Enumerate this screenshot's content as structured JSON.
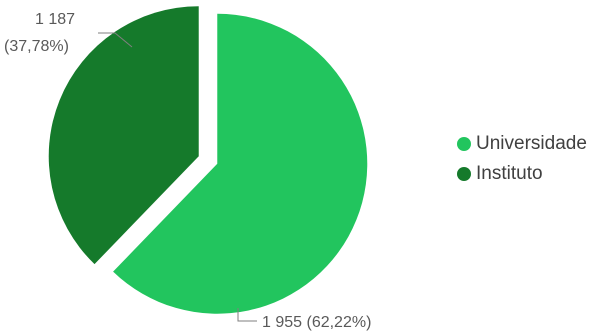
{
  "chart_data": {
    "type": "pie",
    "title": "",
    "categories": [
      "Universidade",
      "Instituto"
    ],
    "values": [
      1955,
      1187
    ],
    "percent_labels": [
      "62,22%",
      "37,78%"
    ],
    "value_labels": [
      "1 955",
      "1 187"
    ],
    "data_labels": [
      "1 955 (62,22%)",
      "1 187 (37,78%)"
    ],
    "colors": [
      "#22c55e",
      "#157a2b"
    ],
    "legend_position": "right",
    "exploded": true
  },
  "legend": [
    {
      "label": "Universidade",
      "color": "#22c55e"
    },
    {
      "label": "Instituto",
      "color": "#157a2b"
    }
  ]
}
